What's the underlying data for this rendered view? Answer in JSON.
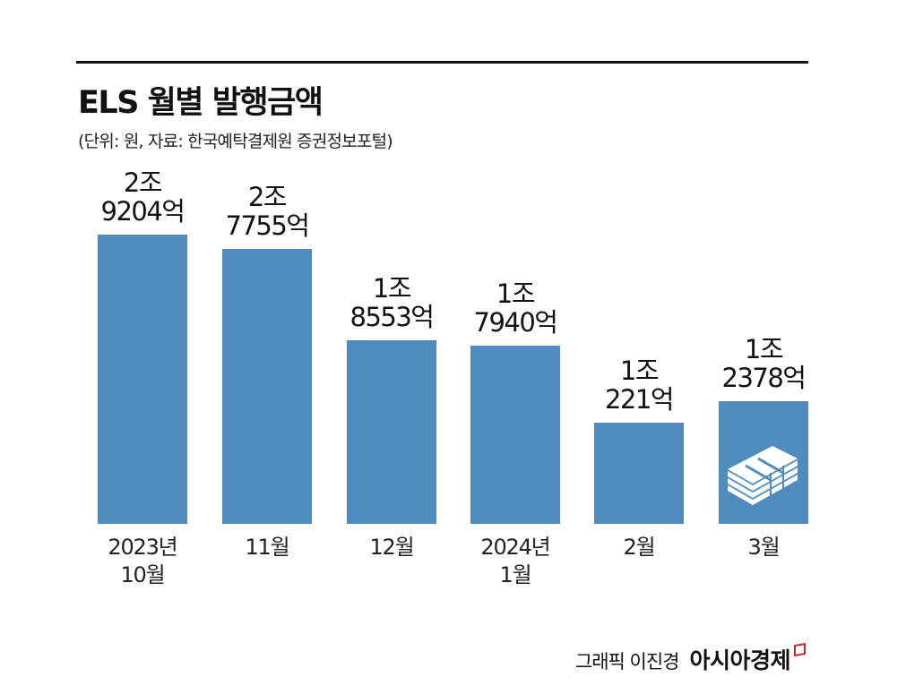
{
  "header": {
    "title": "ELS 월별 발행금액",
    "subtitle": "(단위: 원, 자료: 한국예탁결제원 증권정보포털)"
  },
  "footer": {
    "credit": "그래픽 이진경",
    "brand": "아시아경제"
  },
  "colors": {
    "bar": "#4f8bbf",
    "brand_accent": "#d2232a"
  },
  "chart_data": {
    "type": "bar",
    "title": "ELS 월별 발행금액",
    "unit": "억원",
    "categories": [
      [
        "2023년",
        "10월"
      ],
      [
        "11월"
      ],
      [
        "12월"
      ],
      [
        "2024년",
        "1월"
      ],
      [
        "2월"
      ],
      [
        "3월"
      ]
    ],
    "values": [
      29204,
      27755,
      18553,
      17940,
      10221,
      12378
    ],
    "value_labels": [
      [
        "2조",
        "9204억"
      ],
      [
        "2조",
        "7755억"
      ],
      [
        "1조",
        "8553억"
      ],
      [
        "1조",
        "7940억"
      ],
      [
        "1조",
        "221억"
      ],
      [
        "1조",
        "2378억"
      ]
    ],
    "ylim": [
      0,
      30000
    ],
    "grid": false,
    "icons": [
      "money-stack-icon"
    ]
  }
}
